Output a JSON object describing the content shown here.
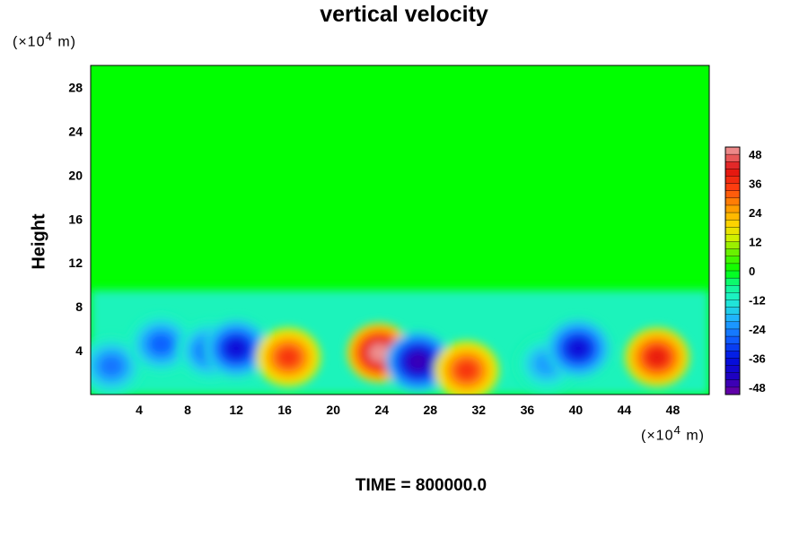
{
  "chart_data": {
    "type": "heatmap",
    "title": "vertical velocity",
    "ylabel": "Height",
    "x_unit": "(×10",
    "y_unit": "(×10",
    "unit_exp": "4",
    "unit_tail": " m)",
    "footer": "TIME = 800000.0",
    "x_ticks": [
      "4",
      "8",
      "12",
      "16",
      "20",
      "24",
      "28",
      "32",
      "36",
      "40",
      "44",
      "48"
    ],
    "x_tick_values": [
      4,
      8,
      12,
      16,
      20,
      24,
      28,
      32,
      36,
      40,
      44,
      48
    ],
    "y_ticks": [
      "4",
      "8",
      "12",
      "16",
      "20",
      "24",
      "28"
    ],
    "y_tick_values": [
      4,
      8,
      12,
      16,
      20,
      24,
      28
    ],
    "xlim": [
      0,
      51
    ],
    "ylim": [
      0,
      30
    ],
    "colorbar": {
      "ticks": [
        "48",
        "36",
        "24",
        "12",
        "0",
        "-12",
        "-24",
        "-36",
        "-48"
      ],
      "tick_values": [
        48,
        36,
        24,
        12,
        0,
        -12,
        -24,
        -36,
        -48
      ],
      "range": [
        -51,
        51
      ]
    },
    "cells": [
      {
        "x": 1.7,
        "y": 2.6,
        "v": -26
      },
      {
        "x": 5.8,
        "y": 4.6,
        "v": -28
      },
      {
        "x": 9.8,
        "y": 4.0,
        "v": -28
      },
      {
        "x": 12.0,
        "y": 4.2,
        "v": -38
      },
      {
        "x": 16.3,
        "y": 3.4,
        "v": 36
      },
      {
        "x": 23.8,
        "y": 3.8,
        "v": 50
      },
      {
        "x": 27.0,
        "y": 3.0,
        "v": -46
      },
      {
        "x": 31.0,
        "y": 2.2,
        "v": 36
      },
      {
        "x": 37.6,
        "y": 2.8,
        "v": -22
      },
      {
        "x": 40.2,
        "y": 4.2,
        "v": -38
      },
      {
        "x": 46.7,
        "y": 3.4,
        "v": 40
      }
    ],
    "background": {
      "upper": 0,
      "lower": -10
    },
    "colors": {
      "green": "#00ff00",
      "cyan": "#20f0d0",
      "blue": "#0a10d8",
      "purple": "#7000a0",
      "red": "#f01010",
      "orange": "#ff9900",
      "yellow": "#e8f000",
      "pink": "#f0a0a0"
    }
  }
}
